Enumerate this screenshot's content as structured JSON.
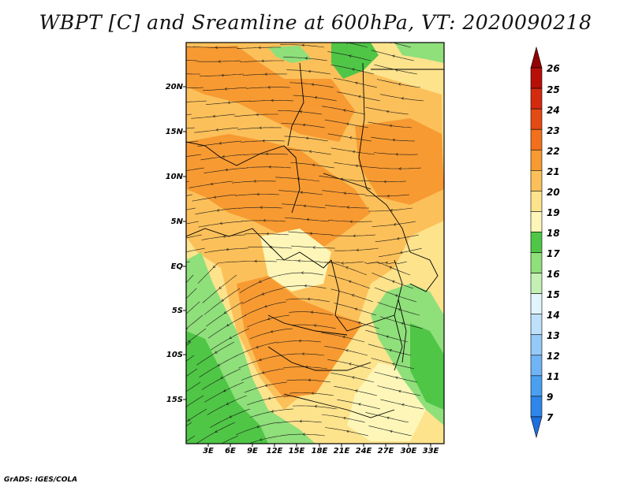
{
  "title": "WBPT [C] and Sreamline at 600hPa, VT: 2020090218",
  "footer": "GrADS: IGES/COLA",
  "map": {
    "lat_labels": [
      "20N",
      "15N",
      "10N",
      "5N",
      "EQ",
      "5S",
      "10S",
      "15S"
    ],
    "lon_labels": [
      "3E",
      "6E",
      "9E",
      "12E",
      "15E",
      "18E",
      "21E",
      "24E",
      "27E",
      "30E",
      "33E"
    ]
  },
  "colorbar": {
    "levels": [
      "7",
      "9",
      "11",
      "12",
      "13",
      "14",
      "15",
      "16",
      "17",
      "18",
      "19",
      "20",
      "21",
      "22",
      "23",
      "24",
      "25",
      "26"
    ],
    "colors": [
      "#1e6fe0",
      "#2e86ea",
      "#4b9ff0",
      "#6fb4f5",
      "#95c9f8",
      "#bfe0fb",
      "#e2f5fb",
      "#c4f0b4",
      "#8fdf7a",
      "#4fc646",
      "#fdf6b8",
      "#fde38c",
      "#fcc05a",
      "#f79a32",
      "#f2701c",
      "#e44a14",
      "#d42a10",
      "#b81008",
      "#920404"
    ]
  },
  "field_colors": {
    "green": "#4fc646",
    "light_green": "#8fdf7a",
    "pale_yellow": "#fdf6b8",
    "yellow": "#fde38c",
    "light_orange": "#fcc05a",
    "orange": "#f79a32"
  }
}
